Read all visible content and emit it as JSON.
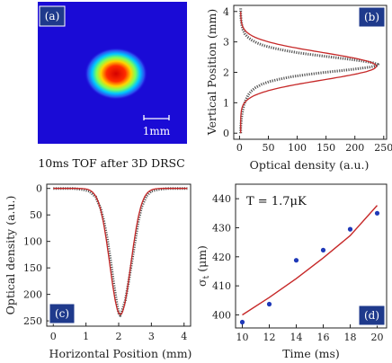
{
  "chart_data": [
    {
      "panel": "a",
      "type": "heatmap",
      "badge": "(a)",
      "scalebar_label": "1mm",
      "caption": "10ms TOF after 3D DRSC",
      "background_color": "#1a0bd6"
    },
    {
      "panel": "b",
      "type": "line",
      "badge": "(b)",
      "xlabel": "Optical density (a.u.)",
      "ylabel": "Vertical Position (mm)",
      "xlim": [
        -10,
        255
      ],
      "ylim": [
        -0.2,
        4.2
      ],
      "xticks": [
        "0",
        "50",
        "100",
        "150",
        "200",
        "250"
      ],
      "yticks": [
        "0",
        "1",
        "2",
        "3",
        "4"
      ],
      "gaussian": {
        "amplitude": 235,
        "center": 2.2,
        "sigma": 0.45,
        "offset": 2
      },
      "series": [
        {
          "role": "data",
          "x": [
            2,
            2,
            3,
            4,
            6,
            8,
            11,
            15,
            20,
            28,
            38,
            52,
            70,
            92,
            118,
            148,
            178,
            206,
            226,
            238,
            240,
            232,
            214,
            190,
            160,
            130,
            102,
            78,
            58,
            42,
            30,
            21,
            14,
            9,
            6,
            4,
            3,
            2,
            2
          ],
          "y": [
            0.0,
            0.2,
            0.4,
            0.6,
            0.8,
            0.95,
            1.1,
            1.25,
            1.38,
            1.5,
            1.6,
            1.7,
            1.78,
            1.86,
            1.93,
            2.0,
            2.06,
            2.12,
            2.17,
            2.22,
            2.26,
            2.31,
            2.37,
            2.43,
            2.5,
            2.57,
            2.64,
            2.72,
            2.8,
            2.88,
            2.97,
            3.06,
            3.16,
            3.27,
            3.4,
            3.55,
            3.7,
            3.9,
            4.1
          ]
        }
      ]
    },
    {
      "panel": "c",
      "type": "line",
      "badge": "(c)",
      "xlabel": "Horizontal Position (mm)",
      "ylabel": "Optical density (a.u.)",
      "xlim": [
        -0.2,
        4.2
      ],
      "ylim": [
        -8,
        260
      ],
      "y_inverted": true,
      "xticks": [
        "0",
        "1",
        "2",
        "3",
        "4"
      ],
      "yticks": [
        "0",
        "50",
        "100",
        "150",
        "200",
        "250"
      ],
      "gaussian": {
        "amplitude": 238,
        "center": 2.05,
        "sigma": 0.32,
        "offset": 0
      },
      "series": [
        {
          "role": "data",
          "x": [
            0.0,
            0.3,
            0.6,
            0.9,
            1.1,
            1.3,
            1.45,
            1.55,
            1.65,
            1.75,
            1.85,
            1.95,
            2.0,
            2.05,
            2.1,
            2.2,
            2.3,
            2.4,
            2.5,
            2.6,
            2.7,
            2.85,
            3.0,
            3.2,
            3.5,
            3.8,
            4.1
          ],
          "y": [
            0,
            0,
            0,
            2,
            5,
            16,
            38,
            62,
            95,
            135,
            180,
            220,
            235,
            240,
            232,
            212,
            178,
            140,
            100,
            62,
            35,
            14,
            5,
            2,
            0,
            0,
            0
          ]
        }
      ]
    },
    {
      "panel": "d",
      "type": "scatter",
      "badge": "(d)",
      "annotation": "T = 1.7μK",
      "xlabel": "Time (ms)",
      "ylabel": "σt (μm)",
      "ylabel_main": "σ",
      "ylabel_sub": "t",
      "ylabel_rest": " (μm)",
      "xlim": [
        9.5,
        20.7
      ],
      "ylim": [
        395.5,
        445
      ],
      "xticks": [
        "10",
        "12",
        "14",
        "16",
        "18",
        "20"
      ],
      "yticks": [
        "400",
        "410",
        "420",
        "430",
        "440"
      ],
      "series": [
        {
          "role": "data",
          "x": [
            10,
            12,
            14,
            16,
            18,
            20
          ],
          "y": [
            397.5,
            403.7,
            418.8,
            422.3,
            429.5,
            435.0
          ]
        },
        {
          "role": "fit",
          "x": [
            10,
            12,
            14,
            16,
            18,
            20
          ],
          "y": [
            400.0,
            406.0,
            412.5,
            419.6,
            427.3,
            437.7
          ]
        }
      ]
    }
  ],
  "colors": {
    "badge": "#1f3a8c",
    "data_points": "#555555",
    "fit_line": "#c62828",
    "scatter_points": "#1f39b8"
  }
}
